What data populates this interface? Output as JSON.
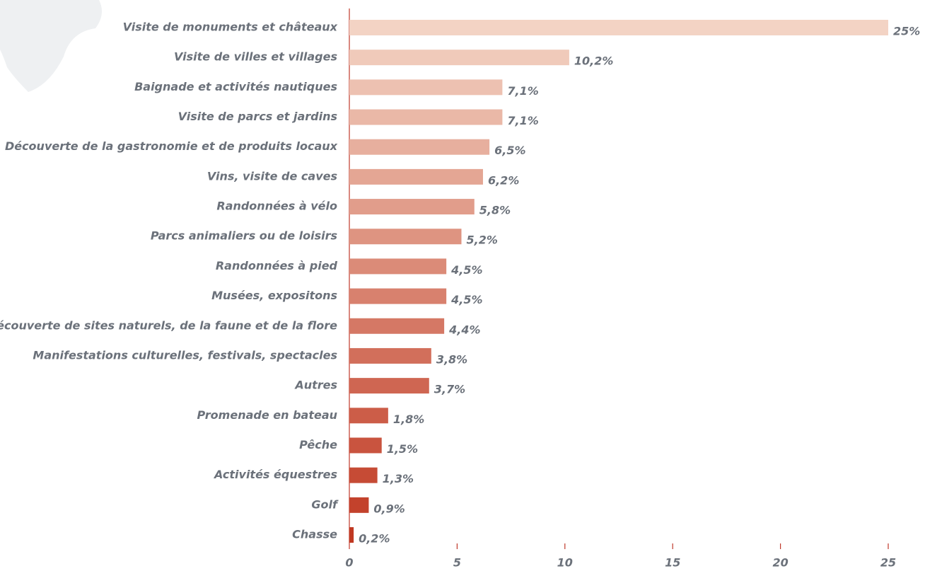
{
  "chart_data": {
    "type": "barh",
    "categories": [
      "Visite de monuments et châteaux",
      "Visite de villes et villages",
      "Baignade et activités nautiques",
      "Visite de parcs et jardins",
      "Découverte de la gastronomie et de produits locaux",
      "Vins, visite de caves",
      "Randonnées à vélo",
      "Parcs animaliers ou de loisirs",
      "Randonnées à pied",
      "Musées, expositons",
      "Découverte de sites naturels, de la faune et de la flore",
      "Manifestations culturelles, festivals, spectacles",
      "Autres",
      "Promenade en bateau",
      "Pêche",
      "Activités équestres",
      "Golf",
      "Chasse"
    ],
    "values": [
      25,
      10.2,
      7.1,
      7.1,
      6.5,
      6.2,
      5.8,
      5.2,
      4.5,
      4.5,
      4.4,
      3.8,
      3.7,
      1.8,
      1.5,
      1.3,
      0.9,
      0.2
    ],
    "value_labels": [
      "25%",
      "10,2%",
      "7,1%",
      "7,1%",
      "6,5%",
      "6,2%",
      "5,8%",
      "5,2%",
      "4,5%",
      "4,5%",
      "4,4%",
      "3,8%",
      "3,7%",
      "1,8%",
      "1,5%",
      "1,3%",
      "0,9%",
      "0,2%"
    ],
    "colors": [
      "#f3d3c4",
      "#f0caba",
      "#edc1b1",
      "#eab8a7",
      "#e7af9e",
      "#e4a694",
      "#e19d8b",
      "#de9481",
      "#db8b78",
      "#d8816e",
      "#d57865",
      "#d26f5b",
      "#cf6652",
      "#cc5d48",
      "#c9543f",
      "#c64b35",
      "#c3422c",
      "#c03922"
    ],
    "xlim": [
      0,
      25
    ],
    "xticks": [
      0,
      5,
      10,
      15,
      20,
      25
    ]
  }
}
